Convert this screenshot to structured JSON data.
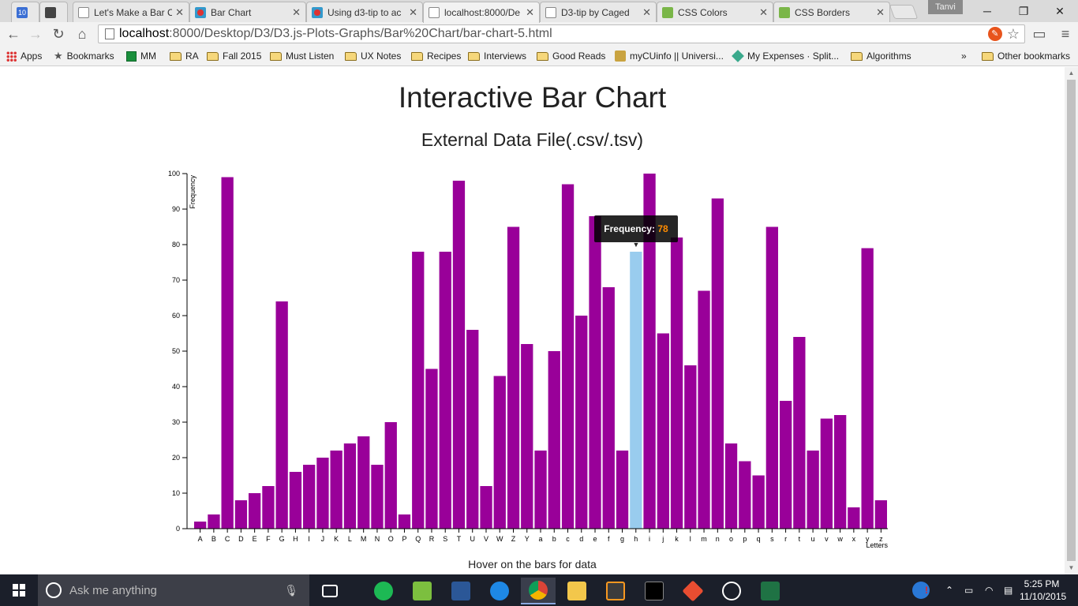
{
  "browser": {
    "tabs": [
      {
        "title": "10",
        "favicon": "calendar-icon"
      },
      {
        "title": "",
        "favicon": "trello-icon"
      },
      {
        "title": "Let's Make a Bar C",
        "favicon": "document-icon"
      },
      {
        "title": "Bar Chart",
        "favicon": "chart-favicon"
      },
      {
        "title": "Using d3-tip to ac",
        "favicon": "chart-favicon"
      },
      {
        "title": "localhost:8000/De",
        "favicon": "document-icon"
      },
      {
        "title": "D3-tip by Caged",
        "favicon": "document-icon"
      },
      {
        "title": "CSS Colors",
        "favicon": "w3-icon"
      },
      {
        "title": "CSS Borders",
        "favicon": "w3-icon"
      }
    ],
    "profile_name": "Tanvi",
    "url_host": "localhost",
    "url_path": ":8000/Desktop/D3/D3.js-Plots-Graphs/Bar%20Chart/bar-chart-5.html",
    "bookmarks": [
      {
        "label": "Apps",
        "icon": "apps-icon"
      },
      {
        "label": "Bookmarks",
        "icon": "star-icon"
      },
      {
        "label": "MM",
        "icon": "sheets-icon"
      },
      {
        "label": "RA",
        "icon": "folder-icon"
      },
      {
        "label": "Fall 2015",
        "icon": "folder-icon"
      },
      {
        "label": "Must Listen",
        "icon": "folder-icon"
      },
      {
        "label": "UX Notes",
        "icon": "folder-icon"
      },
      {
        "label": "Recipes",
        "icon": "folder-icon"
      },
      {
        "label": "Interviews",
        "icon": "folder-icon"
      },
      {
        "label": "Good Reads",
        "icon": "folder-icon"
      },
      {
        "label": "myCUinfo || Universi...",
        "icon": "cu-icon"
      },
      {
        "label": "My Expenses · Split...",
        "icon": "splitwise-icon"
      },
      {
        "label": "Algorithms",
        "icon": "folder-icon"
      }
    ],
    "overflow_label": "»",
    "other_bookmarks": "Other bookmarks"
  },
  "page": {
    "title": "Interactive Bar Chart",
    "subtitle": "External Data File(.csv/.tsv)",
    "footer": "Hover on the bars for data",
    "tooltip": {
      "label": "Frequency:",
      "value": "78"
    }
  },
  "chart_data": {
    "type": "bar",
    "title": "",
    "xlabel": "Letters",
    "ylabel": "Frequency",
    "ylim": [
      0,
      100
    ],
    "yticks": [
      0,
      10,
      20,
      30,
      40,
      50,
      60,
      70,
      80,
      90,
      100
    ],
    "grid": false,
    "legend": "none",
    "bar_color": "#990099",
    "hover_color": "#99ccee",
    "hovered_category": "h",
    "categories": [
      "A",
      "B",
      "C",
      "D",
      "E",
      "F",
      "G",
      "H",
      "I",
      "J",
      "K",
      "L",
      "M",
      "N",
      "O",
      "P",
      "Q",
      "R",
      "S",
      "T",
      "U",
      "V",
      "W",
      "Z",
      "Y",
      "a",
      "b",
      "c",
      "d",
      "e",
      "f",
      "g",
      "h",
      "i",
      "j",
      "k",
      "l",
      "m",
      "n",
      "o",
      "p",
      "q",
      "s",
      "r",
      "t",
      "u",
      "v",
      "w",
      "x",
      "y",
      "z"
    ],
    "values": [
      2,
      4,
      99,
      8,
      10,
      12,
      64,
      16,
      18,
      20,
      22,
      24,
      26,
      18,
      30,
      4,
      78,
      45,
      78,
      98,
      56,
      12,
      43,
      85,
      52,
      22,
      50,
      97,
      60,
      88,
      68,
      22,
      78,
      100,
      55,
      82,
      46,
      67,
      93,
      24,
      19,
      15,
      85,
      36,
      54,
      22,
      31,
      32,
      6,
      79,
      8
    ]
  },
  "taskbar": {
    "search_placeholder": "Ask me anything",
    "time": "5:25 PM",
    "date": "11/10/2015"
  }
}
